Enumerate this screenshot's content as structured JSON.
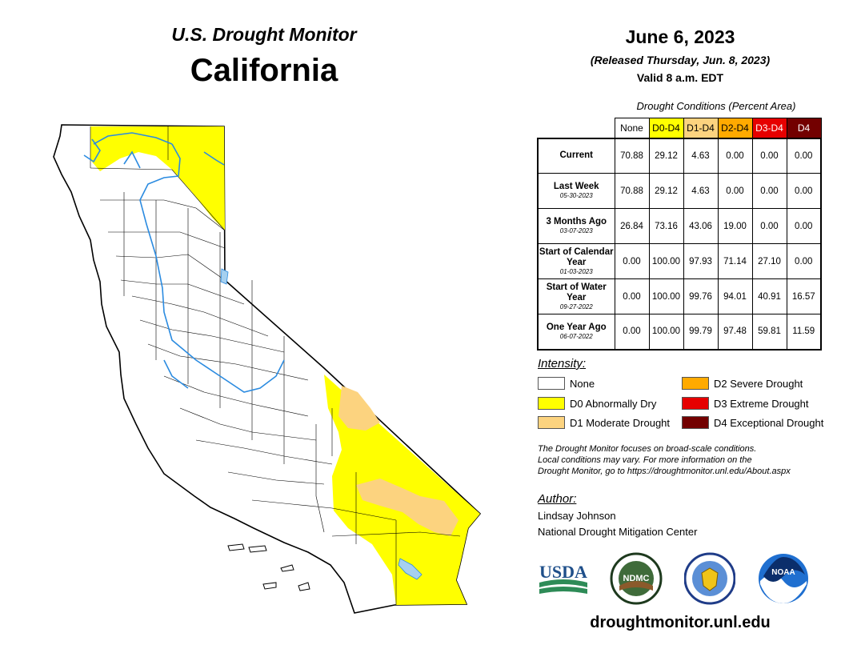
{
  "header": {
    "subtitle": "U.S. Drought Monitor",
    "state": "California"
  },
  "date": {
    "main": "June 6, 2023",
    "released": "(Released Thursday, Jun. 8, 2023)",
    "valid": "Valid 8 a.m. EDT"
  },
  "table": {
    "title": "Drought Conditions (Percent Area)",
    "columns": [
      "None",
      "D0-D4",
      "D1-D4",
      "D2-D4",
      "D3-D4",
      "D4"
    ],
    "rows": [
      {
        "label": "Current",
        "date": "",
        "values": [
          "70.88",
          "29.12",
          "4.63",
          "0.00",
          "0.00",
          "0.00"
        ]
      },
      {
        "label": "Last Week",
        "date": "05-30-2023",
        "values": [
          "70.88",
          "29.12",
          "4.63",
          "0.00",
          "0.00",
          "0.00"
        ]
      },
      {
        "label": "3 Months Ago",
        "date": "03-07-2023",
        "values": [
          "26.84",
          "73.16",
          "43.06",
          "19.00",
          "0.00",
          "0.00"
        ]
      },
      {
        "label": "Start of Calendar Year",
        "date": "01-03-2023",
        "values": [
          "0.00",
          "100.00",
          "97.93",
          "71.14",
          "27.10",
          "0.00"
        ]
      },
      {
        "label": "Start of Water Year",
        "date": "09-27-2022",
        "values": [
          "0.00",
          "100.00",
          "99.76",
          "94.01",
          "40.91",
          "16.57"
        ]
      },
      {
        "label": "One Year Ago",
        "date": "06-07-2022",
        "values": [
          "0.00",
          "100.00",
          "99.79",
          "97.48",
          "59.81",
          "11.59"
        ]
      }
    ]
  },
  "legend": {
    "title": "Intensity:",
    "items": [
      {
        "label": "None",
        "color": "#ffffff"
      },
      {
        "label": "D0 Abnormally Dry",
        "color": "#ffff00"
      },
      {
        "label": "D1 Moderate Drought",
        "color": "#fcd37f"
      },
      {
        "label": "D2 Severe Drought",
        "color": "#ffaa00"
      },
      {
        "label": "D3 Extreme Drought",
        "color": "#e60000"
      },
      {
        "label": "D4 Exceptional Drought",
        "color": "#730000"
      }
    ]
  },
  "notes": {
    "line1": "The Drought Monitor focuses on broad-scale conditions.",
    "line2": "Local conditions may vary. For more information on the",
    "line3": "Drought Monitor, go to https://droughtmonitor.unl.edu/About.aspx"
  },
  "author": {
    "title": "Author:",
    "name": "Lindsay Johnson",
    "org": "National Drought Mitigation Center"
  },
  "logos": {
    "usda": "USDA",
    "ndmc": "NDMC",
    "noaa": "NOAA"
  },
  "footer": {
    "site": "droughtmonitor.unl.edu"
  }
}
